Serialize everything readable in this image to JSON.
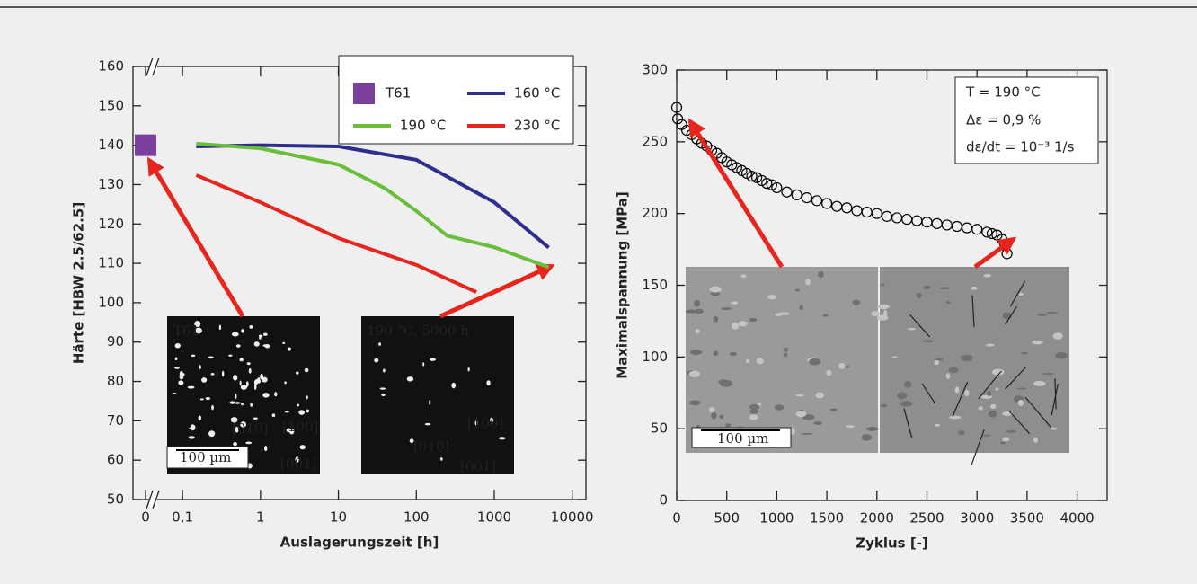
{
  "chart_data": [
    {
      "type": "line",
      "x_label": "Auslagerungszeit [h]",
      "y_label": "Härte [HBW 2.5/62.5]",
      "x_log": true,
      "axis_break": true,
      "legend": "upper right",
      "xlim": [
        0.05,
        15000
      ],
      "xticks": [
        0,
        {
          "value": 0.1,
          "label": "0,1"
        },
        1,
        10,
        100,
        1000,
        10000
      ],
      "ylim": [
        50,
        160
      ],
      "yticks": [
        50,
        60,
        70,
        80,
        90,
        100,
        110,
        120,
        130,
        140,
        150,
        160
      ],
      "series": [
        {
          "name": "T61",
          "color": "#7b3f9e",
          "marker": "square",
          "x": [
            0
          ],
          "values": [
            140
          ]
        },
        {
          "name": "160 °C",
          "color": "#2e2e8f",
          "x": [
            0.15,
            1,
            10,
            100,
            1000,
            5000
          ],
          "values": [
            139.7,
            140,
            139.7,
            136.3,
            125.5,
            114
          ]
        },
        {
          "name": "190 °C",
          "color": "#6abf3a",
          "x": [
            0.15,
            1,
            10,
            40,
            100,
            250,
            1000,
            5000
          ],
          "values": [
            140.4,
            139.2,
            135.1,
            129,
            123.3,
            117,
            114.1,
            109
          ]
        },
        {
          "name": "230 °C",
          "color": "#e8251c",
          "x": [
            0.15,
            1,
            10,
            100,
            590
          ],
          "values": [
            132.4,
            125.5,
            116.4,
            109.6,
            102.7
          ]
        }
      ],
      "annotations": [
        "T61",
        "[010]",
        "[100]",
        "[001]",
        "100 µm",
        "190 °C, 5000 h",
        "[100]",
        "[010]",
        "[001]"
      ]
    },
    {
      "type": "scatter",
      "x_label": "Zyklus [-]",
      "y_label": "Maximalspannung [MPa]",
      "xlim": [
        0,
        4300
      ],
      "xticks": [
        0,
        500,
        1000,
        1500,
        2000,
        2500,
        3000,
        3500,
        4000
      ],
      "ylim": [
        0,
        300
      ],
      "yticks": [
        0,
        50,
        100,
        150,
        200,
        250,
        300
      ],
      "series": [
        {
          "name": "T = 190 °C",
          "color": "#000000",
          "x": [
            0,
            10,
            50,
            100,
            150,
            200,
            250,
            300,
            350,
            400,
            450,
            500,
            550,
            600,
            650,
            700,
            750,
            800,
            850,
            900,
            950,
            1000,
            1100,
            1200,
            1300,
            1400,
            1500,
            1600,
            1700,
            1800,
            1900,
            2000,
            2100,
            2200,
            2300,
            2400,
            2500,
            2600,
            2700,
            2800,
            2900,
            3000,
            3100,
            3150,
            3200,
            3250,
            3280,
            3300
          ],
          "values": [
            274,
            266,
            262,
            258,
            255,
            252,
            249,
            247,
            244,
            242,
            239,
            236,
            234,
            232,
            230,
            228,
            226,
            225,
            223,
            221,
            220,
            218,
            215,
            213,
            211,
            209,
            207,
            205,
            204,
            202,
            201,
            200,
            198,
            197,
            196,
            195,
            194,
            193,
            192,
            191,
            190,
            189,
            187,
            186,
            185,
            182,
            178,
            172
          ]
        }
      ],
      "annotations": [
        "T = 190 °C",
        "Δε = 0,9 %",
        "dε/dt = 10⁻³ 1/s",
        "100 µm"
      ]
    }
  ]
}
